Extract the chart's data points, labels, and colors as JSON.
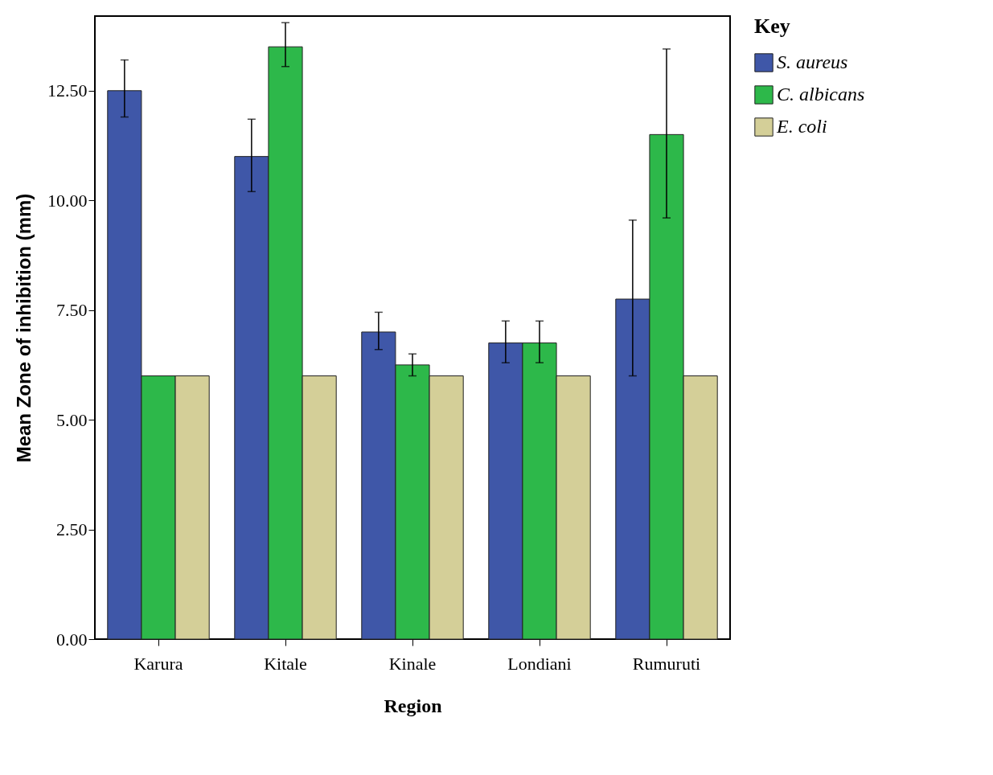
{
  "chart_data": {
    "type": "bar",
    "xlabel": "Region",
    "ylabel": "Mean Zone of inhibition (mm)",
    "legend_title": "Key",
    "legend": "top right",
    "grid": false,
    "categories": [
      "Karura",
      "Kitale",
      "Kinale",
      "Londiani",
      "Rumuruti"
    ],
    "ylim": [
      0,
      14.2
    ],
    "yticks": [
      {
        "value": 0,
        "label": "0.00"
      },
      {
        "value": 2.5,
        "label": "2.50"
      },
      {
        "value": 5,
        "label": "5.00"
      },
      {
        "value": 7.5,
        "label": "7.50"
      },
      {
        "value": 10,
        "label": "10.00"
      },
      {
        "value": 12.5,
        "label": "12.50"
      }
    ],
    "series": [
      {
        "name": "S. aureus",
        "color": "#3f57a8",
        "values": [
          12.5,
          11.0,
          7.0,
          6.75,
          7.75
        ],
        "errors": [
          [
            11.9,
            13.2
          ],
          [
            10.2,
            11.85
          ],
          [
            6.6,
            7.45
          ],
          [
            6.3,
            7.25
          ],
          [
            6.0,
            9.55
          ]
        ]
      },
      {
        "name": "C. albicans",
        "color": "#2db84a",
        "values": [
          6.0,
          13.5,
          6.25,
          6.75,
          11.5
        ],
        "errors": [
          null,
          [
            13.05,
            14.05
          ],
          [
            6.0,
            6.5
          ],
          [
            6.3,
            7.25
          ],
          [
            9.6,
            13.45
          ]
        ]
      },
      {
        "name": "E. coli",
        "color": "#d4cf98",
        "values": [
          6.0,
          6.0,
          6.0,
          6.0,
          6.0
        ]
      }
    ]
  }
}
